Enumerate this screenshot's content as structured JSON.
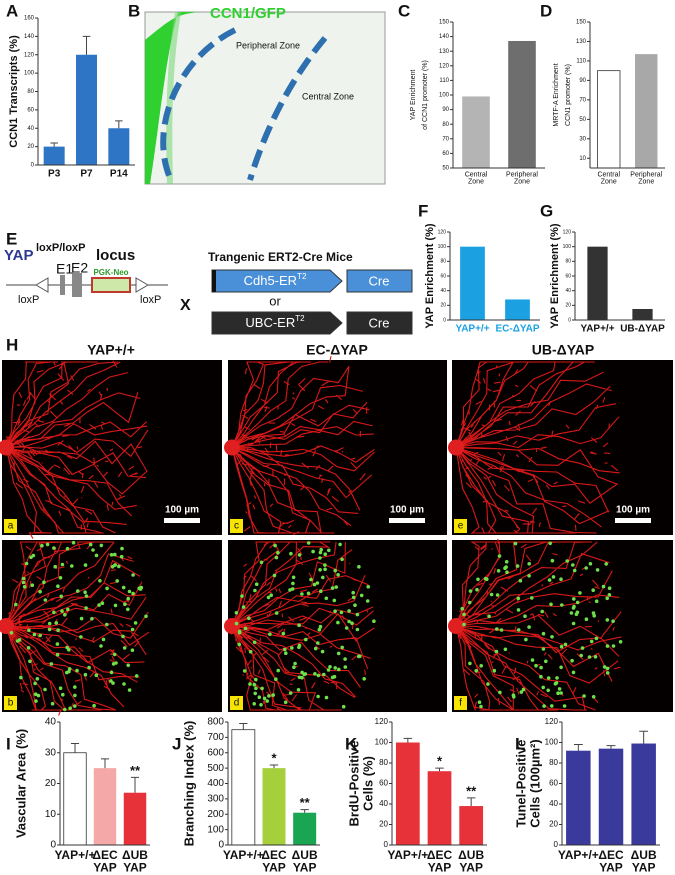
{
  "panel_labels": [
    "A",
    "B",
    "C",
    "D",
    "E",
    "F",
    "G",
    "H",
    "I",
    "J",
    "K",
    "L"
  ],
  "image_b": {
    "title": "CCN1/GFP",
    "zones": [
      "Peripheral Zone",
      "Central Zone"
    ]
  },
  "diagram_e": {
    "gene": "YAP",
    "gene_sup": "loxP/loxP",
    "locus": "locus",
    "exons": [
      "E1",
      "E2"
    ],
    "cassette": "PGK-Neo",
    "lox": [
      "loxP",
      "loxP"
    ],
    "cross": "X",
    "mice_title": "Trangenic ERT2-Cre Mice",
    "drivers": [
      {
        "text": "Cdh5-ER",
        "sup": "T2",
        "cre": "Cre"
      },
      {
        "text": "UBC-ER",
        "sup": "T2",
        "cre": "Cre"
      }
    ],
    "or": "or"
  },
  "image_h": {
    "columns": [
      "YAP+/+",
      "EC-ΔYAP",
      "UB-ΔYAP"
    ],
    "scale": [
      "100 µm",
      "100 µm",
      "100 µm"
    ],
    "sublabels": [
      "a",
      "b",
      "c",
      "d",
      "e",
      "f"
    ]
  },
  "chart_data": [
    {
      "type": "bar",
      "ylabel": "CCN1 Transcripts (%)",
      "categories": [
        "P3",
        "P7",
        "P14"
      ],
      "values": [
        20,
        120,
        40
      ],
      "errors": [
        4,
        20,
        8
      ],
      "colors": [
        "#2e75c6",
        "#2e75c6",
        "#2e75c6"
      ],
      "ylim": [
        0,
        160
      ],
      "yticks": [
        0,
        20,
        40,
        60,
        80,
        100,
        120,
        140,
        160
      ]
    },
    {
      "type": "bar",
      "ylabel": [
        "YAP Enrichment",
        "of CCN1 promoter (%)"
      ],
      "categories": [
        "Central Zone",
        "Peripheral Zone"
      ],
      "values": [
        99,
        137
      ],
      "colors": [
        "#b4b4b4",
        "#6e6e6e"
      ],
      "ylim": [
        50,
        150
      ],
      "yticks": [
        50,
        60,
        70,
        80,
        90,
        100,
        110,
        120,
        130,
        140,
        150
      ]
    },
    {
      "type": "bar",
      "ylabel": [
        "MRTF-A Enrichment",
        "CCN1 promoter (%)"
      ],
      "categories": [
        "Central Zone",
        "Peripheral Zone"
      ],
      "values": [
        100,
        117
      ],
      "colors": [
        "#ffffff",
        "#a8a8a8"
      ],
      "ylim": [
        0,
        150
      ],
      "yticks": [
        10,
        30,
        50,
        70,
        90,
        110,
        130,
        150
      ]
    },
    {
      "type": "bar",
      "ylabel": "YAP  Enrichment (%)",
      "categories": [
        "YAP+/+",
        "EC-ΔYAP"
      ],
      "category_color": "#1ba1e2",
      "values": [
        100,
        28
      ],
      "colors": [
        "#1ba1e2",
        "#1ba1e2"
      ],
      "ylim": [
        0,
        120
      ],
      "yticks": [
        0,
        20,
        40,
        60,
        80,
        100,
        120
      ]
    },
    {
      "type": "bar",
      "ylabel": "YAP  Enrichment (%)",
      "categories": [
        "YAP+/+",
        "UB-ΔYAP"
      ],
      "values": [
        100,
        15
      ],
      "colors": [
        "#333333",
        "#333333"
      ],
      "ylim": [
        0,
        120
      ],
      "yticks": [
        0,
        20,
        40,
        60,
        80,
        100,
        120
      ]
    },
    {
      "type": "bar",
      "ylabel": "Vascular Area (%)",
      "categories": [
        "YAP+/+",
        "ΔEC YAP",
        "ΔUB YAP"
      ],
      "values": [
        30,
        25,
        17
      ],
      "errors": [
        3,
        3,
        5
      ],
      "annotations": [
        null,
        null,
        "**"
      ],
      "colors": [
        "#ffffff",
        "#f4a9a8",
        "#e8323a"
      ],
      "ylim": [
        0,
        40
      ],
      "yticks": [
        0,
        10,
        20,
        30,
        40
      ]
    },
    {
      "type": "bar",
      "ylabel": "Branching Index (%)",
      "categories": [
        "YAP+/+",
        "ΔEC YAP",
        "ΔUB YAP"
      ],
      "values": [
        750,
        500,
        210
      ],
      "errors": [
        40,
        20,
        20
      ],
      "annotations": [
        null,
        "*",
        "**"
      ],
      "colors": [
        "#ffffff",
        "#a6cf3c",
        "#1aa552"
      ],
      "ylim": [
        0,
        800
      ],
      "yticks": [
        0,
        100,
        200,
        300,
        400,
        500,
        600,
        700,
        800
      ]
    },
    {
      "type": "bar",
      "ylabel": [
        "BrdU-Positive",
        "Cells (%)"
      ],
      "categories": [
        "YAP+/+",
        "ΔEC YAP",
        "ΔUB YAP"
      ],
      "values": [
        100,
        72,
        38
      ],
      "errors": [
        4,
        3,
        8
      ],
      "annotations": [
        null,
        "*",
        "**"
      ],
      "colors": [
        "#e8323a",
        "#e8323a",
        "#e8323a"
      ],
      "ylim": [
        0,
        120
      ],
      "yticks": [
        0,
        20,
        40,
        60,
        80,
        100,
        120
      ]
    },
    {
      "type": "bar",
      "ylabel": [
        "Tunel-Positive",
        "Cells (100µm²)"
      ],
      "categories": [
        "YAP+/+",
        "ΔEC YAP",
        "ΔUB YAP"
      ],
      "values": [
        92,
        94,
        99
      ],
      "errors": [
        6,
        3,
        12
      ],
      "colors": [
        "#3a3a9c",
        "#3a3a9c",
        "#3a3a9c"
      ],
      "ylim": [
        0,
        120
      ],
      "yticks": [
        0,
        20,
        40,
        60,
        80,
        100,
        120
      ]
    }
  ]
}
